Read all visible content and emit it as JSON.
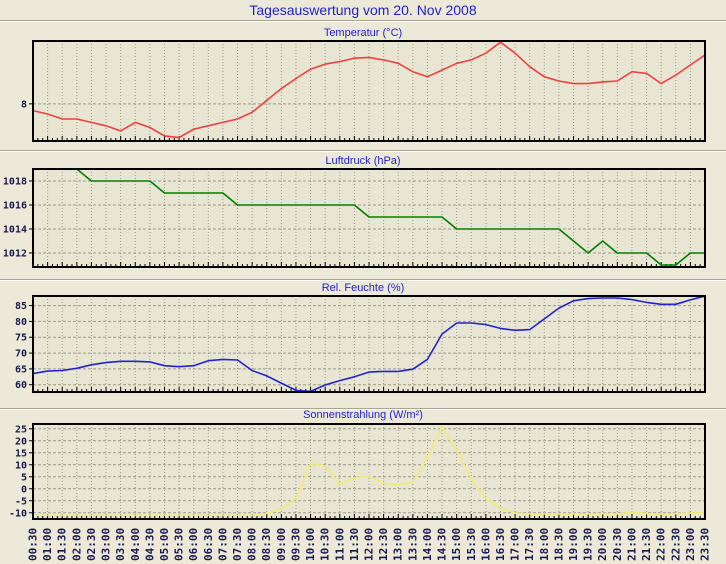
{
  "header": {
    "title": "Tagesauswertung vom 20. Nov 2008"
  },
  "colors": {
    "page_bg": "#ece9d8",
    "plot_bg": "#e8e5d3",
    "frame": "#000000",
    "grid": "#9a9a8c",
    "title_text": "#2222cc",
    "tick_label_text": "#1a1a4e"
  },
  "x_axis": {
    "labels": [
      "00:30",
      "01:00",
      "01:30",
      "02:00",
      "02:30",
      "03:00",
      "03:30",
      "04:00",
      "04:30",
      "05:00",
      "05:30",
      "06:00",
      "06:30",
      "07:00",
      "07:30",
      "08:00",
      "08:30",
      "09:00",
      "09:30",
      "10:00",
      "10:30",
      "11:00",
      "11:30",
      "12:00",
      "12:30",
      "13:00",
      "13:30",
      "14:00",
      "14:30",
      "15:00",
      "15:30",
      "16:00",
      "16:30",
      "17:00",
      "17:30",
      "18:00",
      "18:30",
      "19:00",
      "19:30",
      "20:00",
      "20:30",
      "21:00",
      "21:30",
      "22:00",
      "22:30",
      "23:00",
      "23:30"
    ]
  },
  "chart_data": [
    {
      "type": "line",
      "name": "temperatur",
      "title": "Temperatur (°C)",
      "color": "#ee4040",
      "y_range": [
        5.8,
        11.72
      ],
      "y_gridlines": [
        {
          "value": 8,
          "label": "8"
        }
      ],
      "values": [
        7.6,
        7.4,
        7.1,
        7.1,
        6.9,
        6.7,
        6.4,
        6.9,
        6.6,
        6.1,
        6.0,
        6.5,
        6.7,
        6.9,
        7.1,
        7.5,
        8.2,
        8.9,
        9.5,
        10.05,
        10.35,
        10.5,
        10.7,
        10.75,
        10.6,
        10.4,
        9.9,
        9.6,
        10.0,
        10.4,
        10.6,
        11.0,
        11.65,
        11.0,
        10.2,
        9.6,
        9.35,
        9.2,
        9.2,
        9.3,
        9.35,
        9.9,
        9.8,
        9.2,
        9.7,
        10.3,
        10.9
      ]
    },
    {
      "type": "line",
      "name": "luftdruck",
      "title": "Luftdruck (hPa)",
      "color": "#008000",
      "y_range": [
        1010.83,
        1019.0
      ],
      "y_gridlines": [
        {
          "value": 1018,
          "label": "1018"
        },
        {
          "value": 1016,
          "label": "1016"
        },
        {
          "value": 1014,
          "label": "1014"
        },
        {
          "value": 1012,
          "label": "1012"
        }
      ],
      "values": [
        null,
        null,
        null,
        1019,
        1018,
        1018,
        1018,
        1018,
        1018,
        1017,
        1017,
        1017,
        1017,
        1017,
        1016,
        1016,
        1016,
        1016,
        1016,
        1016,
        1016,
        1016,
        1016,
        1015,
        1015,
        1015,
        1015,
        1015,
        1015,
        1014,
        1014,
        1014,
        1014,
        1014,
        1014,
        1014,
        1014,
        1013,
        1012,
        1013,
        1012,
        1012,
        1012,
        1011,
        1011,
        1012,
        1012
      ]
    },
    {
      "type": "line",
      "name": "feuchte",
      "title": "Rel. Feuchte (%)",
      "color": "#2222cc",
      "y_range": [
        57.7,
        88.03
      ],
      "y_gridlines": [
        {
          "value": 85,
          "label": "85"
        },
        {
          "value": 80,
          "label": "80"
        },
        {
          "value": 75,
          "label": "75"
        },
        {
          "value": 70,
          "label": "70"
        },
        {
          "value": 65,
          "label": "65"
        },
        {
          "value": 60,
          "label": "60"
        }
      ],
      "values": [
        63.5,
        64.3,
        64.5,
        65.2,
        66.3,
        67.0,
        67.4,
        67.4,
        67.2,
        66.0,
        65.7,
        66.0,
        67.6,
        68.0,
        67.8,
        64.5,
        62.8,
        60.5,
        58.2,
        57.9,
        59.9,
        61.3,
        62.5,
        64.0,
        64.2,
        64.2,
        64.9,
        68.0,
        76.0,
        79.5,
        79.5,
        79.0,
        77.8,
        77.2,
        77.4,
        80.8,
        84.2,
        86.5,
        87.2,
        87.4,
        87.4,
        86.9,
        86.0,
        85.4,
        85.4,
        86.8,
        88.0
      ]
    },
    {
      "type": "line",
      "name": "sonnenstrahlung",
      "title": "Sonnenstrahlung (W/m²)",
      "color": "#eded72",
      "y_range": [
        -12.6,
        27.0
      ],
      "y_gridlines": [
        {
          "value": 25,
          "label": "25"
        },
        {
          "value": 20,
          "label": "20"
        },
        {
          "value": 15,
          "label": "15"
        },
        {
          "value": 10,
          "label": "10"
        },
        {
          "value": 5,
          "label": "5"
        },
        {
          "value": 0,
          "label": "0"
        },
        {
          "value": -5,
          "label": "-5"
        },
        {
          "value": -10,
          "label": "-10"
        }
      ],
      "values": [
        -11,
        -11,
        -11,
        -11,
        -11,
        -11,
        -11,
        -11,
        -11,
        -11,
        -11,
        -11,
        -11,
        -11,
        -11,
        -11,
        -10.3,
        -8.5,
        -4,
        10.5,
        9.5,
        2,
        4.5,
        5.3,
        2.2,
        1.7,
        2.8,
        13,
        26,
        16,
        4,
        -4,
        -8,
        -10.2,
        -10.5,
        -10.5,
        -10.5,
        -10.5,
        -10.5,
        -10.4,
        -10.5,
        -9.8,
        -10.4,
        -10.6,
        -10.4,
        -10.2,
        -9.8
      ]
    }
  ]
}
